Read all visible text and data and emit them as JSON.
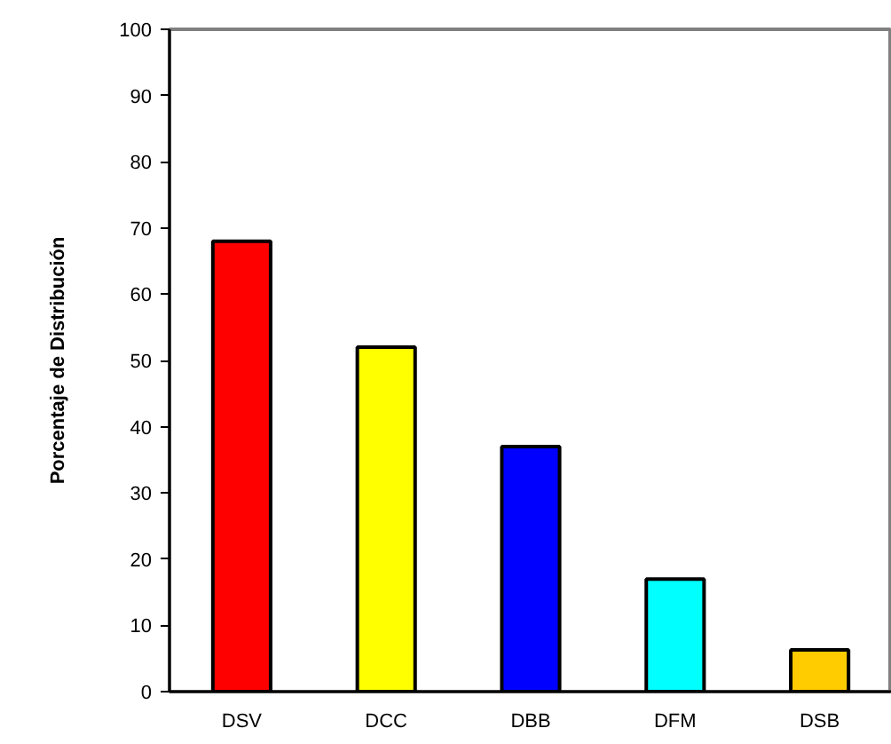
{
  "chart_data": {
    "type": "bar",
    "ylabel": "Porcentaje de Distribución",
    "categories": [
      "DSV",
      "DCC",
      "DBB",
      "DFM",
      "DSB"
    ],
    "values": [
      68,
      52,
      37,
      17,
      6.3
    ],
    "colors": [
      "#ff0000",
      "#ffff00",
      "#0000ff",
      "#00ffff",
      "#ffcc00"
    ],
    "ylim": [
      0,
      100
    ],
    "yticks": [
      0,
      10,
      20,
      30,
      40,
      50,
      60,
      70,
      80,
      90,
      100
    ],
    "grid": false
  }
}
